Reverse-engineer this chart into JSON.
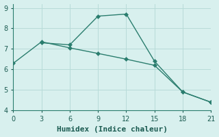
{
  "line1_x": [
    3,
    6,
    9,
    12,
    15,
    18,
    21
  ],
  "line1_y": [
    7.3,
    7.2,
    8.6,
    8.7,
    6.4,
    4.9,
    4.4
  ],
  "line2_x": [
    0,
    3,
    6,
    9,
    12,
    15,
    18,
    21
  ],
  "line2_y": [
    6.3,
    7.35,
    7.05,
    6.78,
    6.5,
    6.2,
    4.9,
    4.4
  ],
  "line_color": "#2a7d6e",
  "bg_color": "#d8f0ee",
  "grid_color": "#b8dbd8",
  "xlabel": "Humidex (Indice chaleur)",
  "xlim": [
    0,
    21
  ],
  "ylim": [
    4.0,
    9.2
  ],
  "xticks": [
    0,
    3,
    6,
    9,
    12,
    15,
    18,
    21
  ],
  "yticks": [
    4,
    5,
    6,
    7,
    8,
    9
  ],
  "marker": "D",
  "markersize": 3.0,
  "linewidth": 1.0,
  "xlabel_fontsize": 8,
  "tick_fontsize": 7,
  "font_color": "#1a5a50"
}
